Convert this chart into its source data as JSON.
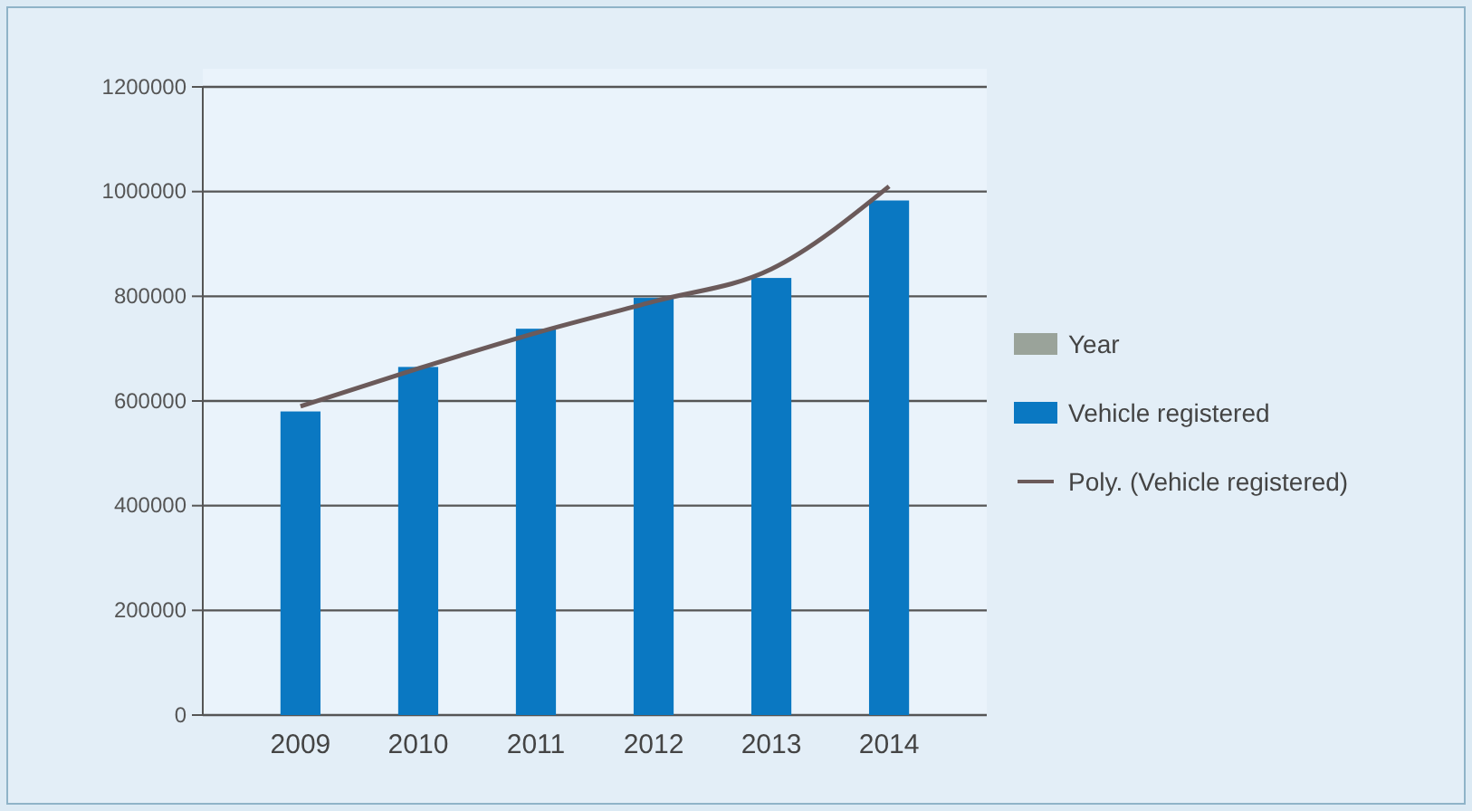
{
  "chart_data": {
    "type": "bar",
    "categories": [
      "2009",
      "2010",
      "2011",
      "2012",
      "2013",
      "2014"
    ],
    "series": [
      {
        "name": "Year",
        "color": "#9aa39a",
        "values": [
          null,
          null,
          null,
          null,
          null,
          null
        ]
      },
      {
        "name": "Vehicle registered",
        "color": "#0a78c2",
        "values": [
          580000,
          665000,
          738000,
          797000,
          835000,
          983000
        ]
      },
      {
        "name": "Poly. (Vehicle registered)",
        "type": "line",
        "color": "#6b5a5a",
        "values": [
          590000,
          662000,
          730000,
          790000,
          852000,
          1010000
        ]
      }
    ],
    "ylim": [
      0,
      1200000
    ],
    "yticks": [
      0,
      200000,
      400000,
      600000,
      800000,
      1000000,
      1200000
    ],
    "grid": "y",
    "legend": "right",
    "marker": "none",
    "line_style": "solid"
  }
}
